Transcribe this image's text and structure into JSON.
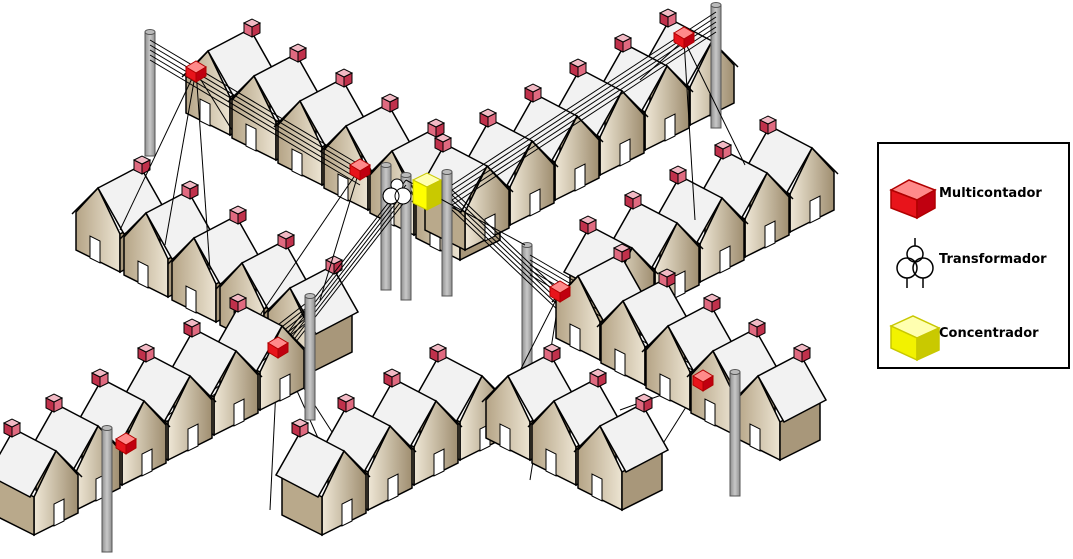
{
  "legend": {
    "items": [
      {
        "key": "meter",
        "label": "Multicontador",
        "icon": "multi-meter-icon",
        "color": "#e8141b"
      },
      {
        "key": "transformer",
        "label": "Transformador",
        "icon": "transformer-icon",
        "color": "#000000"
      },
      {
        "key": "concentrator",
        "label": "Concentrador",
        "icon": "concentrator-icon",
        "color": "#ffff00"
      }
    ]
  },
  "colors": {
    "house_roof": "#f2f2f2",
    "house_wall_light": "#e6dcc6",
    "house_wall_dark": "#a8977a",
    "door": "#ffffff",
    "chimney": "#c0314b",
    "pole": "#a9a9a9",
    "meter": "#e8141b",
    "concentrator": "#ffff00",
    "wire": "#000000"
  }
}
